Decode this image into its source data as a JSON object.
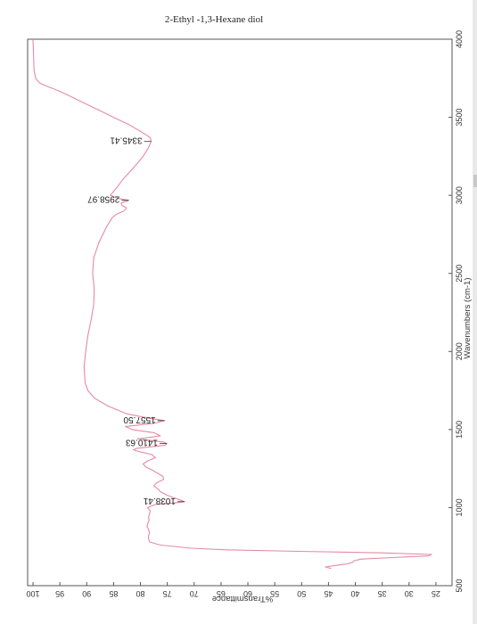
{
  "page": {
    "title": "2-Ethyl -1,3-Hexane diol"
  },
  "chart_data": {
    "type": "line",
    "title": "2-Ethyl -1,3-Hexane diol",
    "xlabel": "Wavenumbers (cm-1)",
    "ylabel": "%Transmittance",
    "xlim": [
      4000,
      500
    ],
    "ylim": [
      22,
      101
    ],
    "x_ticks": [
      4000,
      3500,
      3000,
      2500,
      2000,
      1500,
      1000,
      500
    ],
    "y_ticks": [
      100,
      95,
      90,
      85,
      80,
      75,
      70,
      65,
      60,
      55,
      50,
      45,
      40,
      35,
      30,
      25
    ],
    "grid": false,
    "series": [
      {
        "color": "#e58aa4",
        "x": [
          4000,
          3900,
          3800,
          3750,
          3720,
          3700,
          3680,
          3650,
          3600,
          3550,
          3500,
          3450,
          3400,
          3370,
          3345,
          3300,
          3250,
          3200,
          3150,
          3100,
          3050,
          3000,
          2980,
          2968,
          2950,
          2935,
          2920,
          2900,
          2880,
          2860,
          2800,
          2700,
          2600,
          2500,
          2400,
          2300,
          2200,
          2100,
          2000,
          1900,
          1800,
          1750,
          1700,
          1650,
          1600,
          1580,
          1557,
          1540,
          1520,
          1500,
          1480,
          1460,
          1440,
          1420,
          1410,
          1400,
          1380,
          1370,
          1360,
          1340,
          1320,
          1300,
          1280,
          1260,
          1240,
          1220,
          1200,
          1180,
          1160,
          1140,
          1120,
          1100,
          1080,
          1060,
          1050,
          1038,
          1030,
          1020,
          1000,
          980,
          960,
          940,
          920,
          900,
          880,
          860,
          840,
          820,
          800,
          780,
          760,
          740,
          730,
          720,
          710,
          700,
          690,
          680,
          670,
          660,
          650,
          640,
          630,
          620,
          610
        ],
        "y": [
          100,
          99.9,
          99.8,
          99.5,
          98.8,
          97.5,
          96,
          94,
          91,
          88,
          85,
          82,
          79.5,
          78.2,
          78,
          78.6,
          79.5,
          80.7,
          82,
          83.3,
          84.4,
          85.6,
          84.2,
          82.2,
          83.6,
          83.4,
          82.6,
          83.1,
          84.4,
          85.2,
          86.3,
          87.7,
          88.7,
          88.9,
          88.6,
          88.7,
          89.2,
          89.8,
          90.2,
          90.5,
          90.3,
          89.8,
          88.5,
          86,
          82.5,
          79.5,
          75.5,
          77.5,
          82.8,
          81.5,
          77.5,
          76.3,
          80.5,
          75.7,
          75.1,
          75.4,
          80.7,
          81.3,
          80.4,
          77.9,
          77.2,
          78.6,
          79.5,
          79,
          77.8,
          76.8,
          75.8,
          75.7,
          76.9,
          77.5,
          76.8,
          76.2,
          75.1,
          73.6,
          72.7,
          71.8,
          73.6,
          77.2,
          78.7,
          78.2,
          78.3,
          78.5,
          78.4,
          78.6,
          78.8,
          78.5,
          78.3,
          78.5,
          78.5,
          78.3,
          76.2,
          70.5,
          64.5,
          50.5,
          35,
          25.8,
          26.5,
          33.2,
          38.9,
          40.2,
          40.5,
          41.4,
          43.5,
          45.6,
          44.5
        ]
      }
    ],
    "annotations": [
      {
        "text": "3345.41",
        "x": 3345,
        "y": 78
      },
      {
        "text": "2958.97",
        "x": 2968,
        "y": 82.2
      },
      {
        "text": "1557.50",
        "x": 1557,
        "y": 75.5
      },
      {
        "text": "1410.63",
        "x": 1410,
        "y": 75.1
      },
      {
        "text": "1038.41",
        "x": 1038,
        "y": 71.8
      }
    ]
  }
}
